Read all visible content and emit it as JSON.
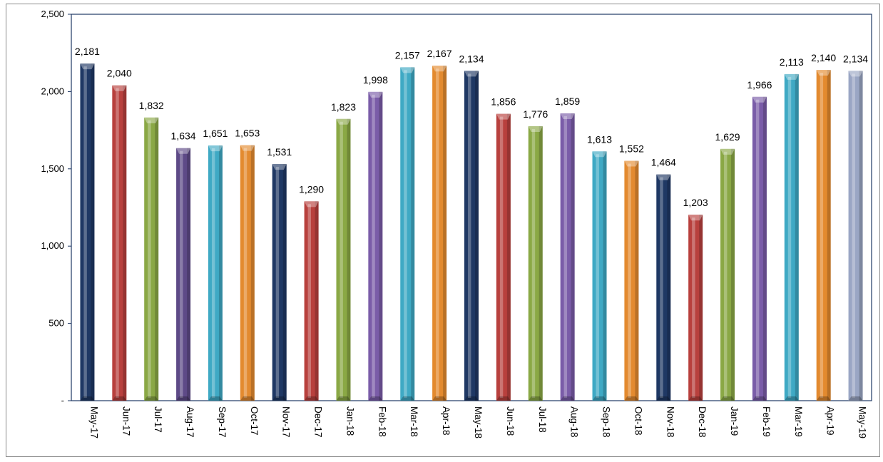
{
  "chart_data": {
    "type": "bar",
    "title": "",
    "xlabel": "",
    "ylabel": "",
    "ylim": [
      0,
      2500
    ],
    "ytick_values": [
      0,
      500,
      1000,
      1500,
      2000,
      2500
    ],
    "ytick_labels": [
      "-",
      "500",
      "1,000",
      "1,500",
      "2,000",
      "2,500"
    ],
    "grid": false,
    "legend": "none",
    "categories": [
      "May-17",
      "Jun-17",
      "Jul-17",
      "Aug-17",
      "Sep-17",
      "Oct-17",
      "Nov-17",
      "Dec-17",
      "Jan-18",
      "Feb-18",
      "Mar-18",
      "Apr-18",
      "May-18",
      "Jun-18",
      "Jul-18",
      "Aug-18",
      "Sep-18",
      "Oct-18",
      "Nov-18",
      "Dec-18",
      "Jan-19",
      "Feb-19",
      "Mar-19",
      "Apr-19",
      "May-19"
    ],
    "values": [
      2181,
      2040,
      1832,
      1634,
      1651,
      1653,
      1531,
      1290,
      1823,
      1998,
      2157,
      2167,
      2134,
      1856,
      1776,
      1859,
      1613,
      1552,
      1464,
      1203,
      1629,
      1966,
      2113,
      2140,
      2134
    ],
    "value_labels": [
      "2,181",
      "2,040",
      "1,832",
      "1,634",
      "1,651",
      "1,653",
      "1,531",
      "1,290",
      "1,823",
      "1,998",
      "2,157",
      "2,167",
      "2,134",
      "1,856",
      "1,776",
      "1,859",
      "1,613",
      "1,552",
      "1,464",
      "1,203",
      "1,629",
      "1,966",
      "2,113",
      "2,140",
      "2,134"
    ],
    "bar_colors": [
      "#1f3864",
      "#b8403d",
      "#8aa845",
      "#5e4a87",
      "#3fa9c4",
      "#e38a2f",
      "#1f3864",
      "#b8403d",
      "#8aa845",
      "#7a5ca8",
      "#3fa9c4",
      "#e38a2f",
      "#1f3864",
      "#b8403d",
      "#8aa845",
      "#7a5ca8",
      "#3fa9c4",
      "#e38a2f",
      "#1f3864",
      "#b8403d",
      "#8aa845",
      "#7a5ca8",
      "#3fa9c4",
      "#e38a2f",
      "#9aa6c4"
    ]
  }
}
